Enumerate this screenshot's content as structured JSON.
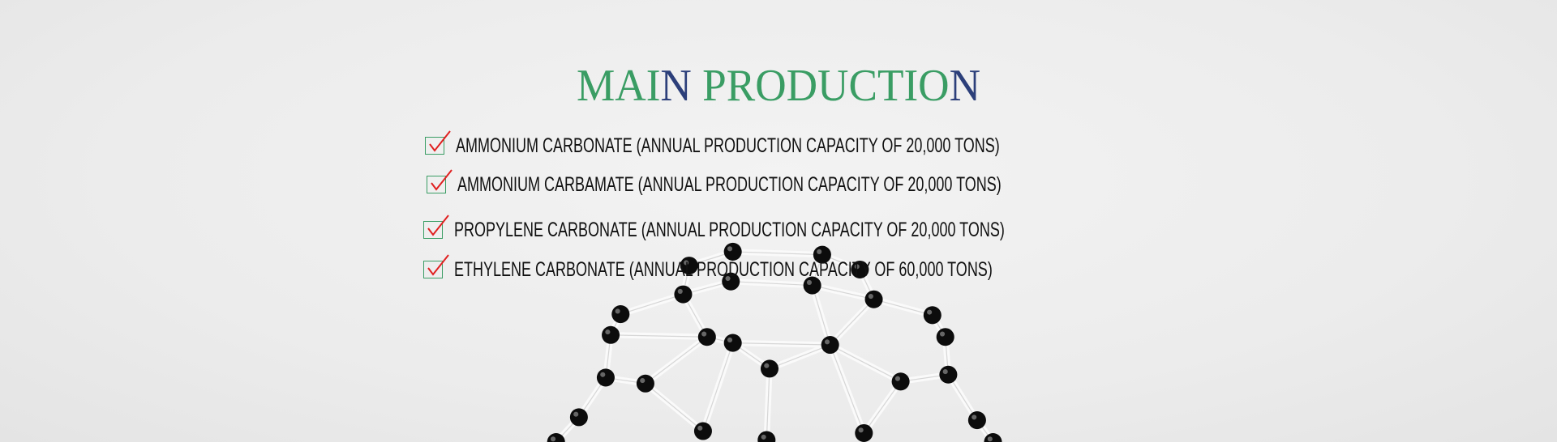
{
  "title": {
    "part1": "MAI",
    "part2": "N",
    "part3": " PRODUCTIO",
    "part4": "N",
    "accent_green": "#3a9d64",
    "accent_blue": "#2c3f7a"
  },
  "items": [
    {
      "icon": "checkbox-checked-icon",
      "label": "AMMONIUM CARBONATE (ANNUAL PRODUCTION CAPACITY OF 20,000 TONS)"
    },
    {
      "icon": "checkbox-checked-icon",
      "label": "AMMONIUM CARBAMATE (ANNUAL PRODUCTION CAPACITY OF 20,000 TONS)"
    },
    {
      "icon": "checkbox-checked-icon",
      "label": "PROPYLENE CARBONATE (ANNUAL PRODUCTION CAPACITY OF 20,000 TONS)"
    },
    {
      "icon": "checkbox-checked-icon",
      "label": "ETHYLENE CARBONATE (ANNUAL PRODUCTION CAPACITY OF 60,000 TONS)"
    }
  ]
}
